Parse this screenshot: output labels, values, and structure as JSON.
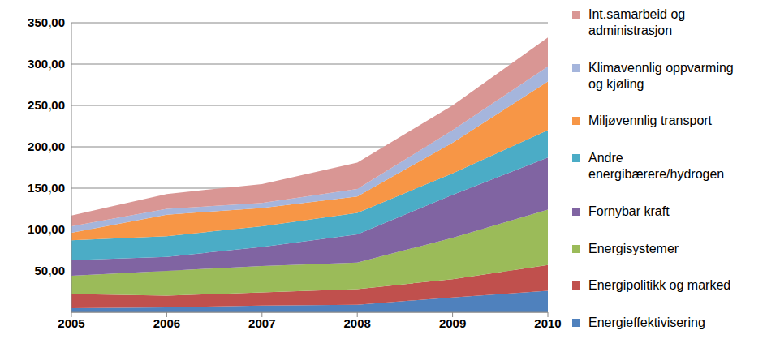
{
  "chart_data": {
    "type": "area",
    "stacked": true,
    "grid": true,
    "legend": "right",
    "categories": [
      "2005",
      "2006",
      "2007",
      "2008",
      "2009",
      "2010"
    ],
    "ylim": [
      0,
      350
    ],
    "yticks": [
      {
        "value": 50,
        "label": "50,00"
      },
      {
        "value": 100,
        "label": "100,00"
      },
      {
        "value": 150,
        "label": "150,00"
      },
      {
        "value": 200,
        "label": "200,00"
      },
      {
        "value": 250,
        "label": "250,00"
      },
      {
        "value": 300,
        "label": "300,00"
      },
      {
        "value": 350,
        "label": "350,00"
      }
    ],
    "series": [
      {
        "name": "Energieffektivisering",
        "color": "#4f81bd",
        "values": [
          5,
          6,
          8,
          9,
          18,
          26
        ]
      },
      {
        "name": "Energipolitikk og marked",
        "color": "#c0504d",
        "values": [
          17,
          14,
          16,
          19,
          22,
          31
        ]
      },
      {
        "name": "Energisystemer",
        "color": "#9bbb59",
        "values": [
          22,
          30,
          32,
          32,
          50,
          67
        ]
      },
      {
        "name": "Fornybar kraft",
        "color": "#8064a2",
        "values": [
          19,
          17,
          23,
          34,
          52,
          63
        ]
      },
      {
        "name": "Andre energibærere/hydrogen",
        "color": "#4bacc6",
        "values": [
          24,
          25,
          25,
          26,
          26,
          33
        ]
      },
      {
        "name": "Miljøvennlig transport",
        "color": "#f79646",
        "values": [
          9,
          26,
          22,
          20,
          37,
          59
        ]
      },
      {
        "name": "Klimavennlig oppvarming og kjøling",
        "color": "#a5b5dc",
        "values": [
          8,
          7,
          6,
          9,
          15,
          18
        ]
      },
      {
        "name": "Int.samarbeid og administrasjon",
        "color": "#d99694",
        "values": [
          13,
          18,
          23,
          32,
          30,
          35
        ]
      }
    ]
  }
}
